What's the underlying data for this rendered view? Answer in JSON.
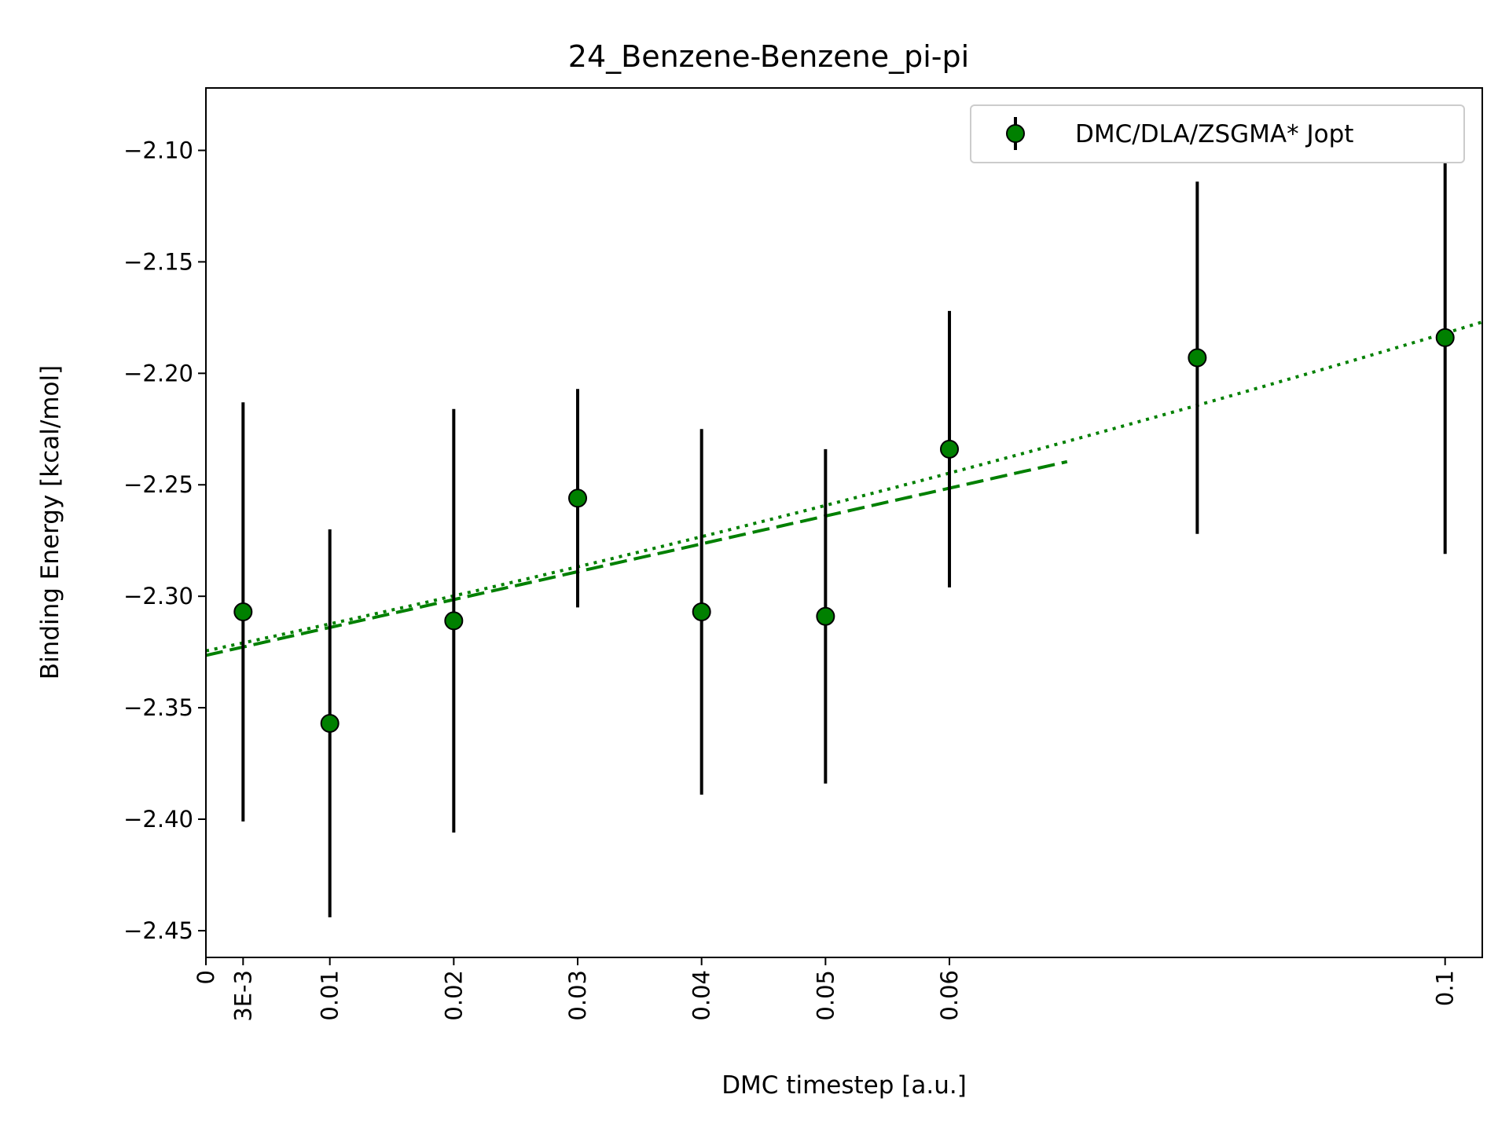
{
  "chart_data": {
    "type": "scatter",
    "title": "24_Benzene-Benzene_pi-pi",
    "xlabel": "DMC timestep [a.u.]",
    "ylabel": "Binding Energy [kcal/mol]",
    "xlim": [
      0,
      0.103
    ],
    "ylim": [
      -2.462,
      -2.072
    ],
    "x_ticks": [
      {
        "value": 0,
        "label": "0"
      },
      {
        "value": 0.003,
        "label": "3E-3"
      },
      {
        "value": 0.01,
        "label": "0.01"
      },
      {
        "value": 0.02,
        "label": "0.02"
      },
      {
        "value": 0.03,
        "label": "0.03"
      },
      {
        "value": 0.04,
        "label": "0.04"
      },
      {
        "value": 0.05,
        "label": "0.05"
      },
      {
        "value": 0.06,
        "label": "0.06"
      },
      {
        "value": 0.1,
        "label": "0.1"
      }
    ],
    "y_ticks": [
      {
        "value": -2.1,
        "label": "−2.10"
      },
      {
        "value": -2.15,
        "label": "−2.15"
      },
      {
        "value": -2.2,
        "label": "−2.20"
      },
      {
        "value": -2.25,
        "label": "−2.25"
      },
      {
        "value": -2.3,
        "label": "−2.30"
      },
      {
        "value": -2.35,
        "label": "−2.35"
      },
      {
        "value": -2.4,
        "label": "−2.40"
      },
      {
        "value": -2.45,
        "label": "−2.45"
      }
    ],
    "grid": false,
    "legend": {
      "placement": "top-right",
      "entries": [
        "DMC/DLA/ZSGMA* Jopt"
      ]
    },
    "series": [
      {
        "name": "DMC/DLA/ZSGMA* Jopt",
        "color": "#008000",
        "errorbar_color": "#000000",
        "points": [
          {
            "x": 0.003,
            "y": -2.307,
            "err": 0.094
          },
          {
            "x": 0.01,
            "y": -2.357,
            "err": 0.087
          },
          {
            "x": 0.02,
            "y": -2.311,
            "err": 0.095
          },
          {
            "x": 0.03,
            "y": -2.256,
            "err": 0.049
          },
          {
            "x": 0.04,
            "y": -2.307,
            "err": 0.082
          },
          {
            "x": 0.05,
            "y": -2.309,
            "err": 0.075
          },
          {
            "x": 0.06,
            "y": -2.234,
            "err": 0.062
          },
          {
            "x": 0.08,
            "y": -2.193,
            "err": 0.079
          },
          {
            "x": 0.1,
            "y": -2.184,
            "err": 0.097
          }
        ]
      }
    ],
    "fits": [
      {
        "style": "dashed",
        "color": "#008000",
        "x_range": [
          0,
          0.0695
        ],
        "intercept": -2.3265,
        "slope": 1.25
      },
      {
        "style": "dotted",
        "color": "#008000",
        "x_range": [
          0,
          0.103
        ],
        "quadratic": [
          -2.3245,
          1.185,
          2.4
        ]
      }
    ]
  }
}
